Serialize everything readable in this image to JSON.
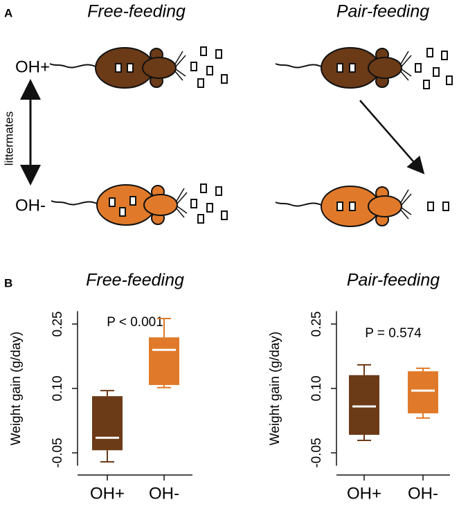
{
  "panel_a": {
    "label": "A",
    "titles": [
      "Free-feeding",
      "Pair-feeding"
    ],
    "row_labels": [
      "OH+",
      "OH-"
    ],
    "arrow_label": "littermates"
  },
  "panel_b": {
    "label": "B"
  },
  "chart_data": [
    {
      "type": "box",
      "title": "Free-feeding",
      "ylabel": "Weight gain (g/day)",
      "annotation": "P < 0.001",
      "categories": [
        "OH+",
        "OH-"
      ],
      "colors": [
        "#6b3a17",
        "#e07a2a"
      ],
      "boxes": [
        {
          "min": -0.071,
          "q1": -0.044,
          "median": -0.015,
          "q3": 0.082,
          "max": 0.095
        },
        {
          "min": 0.102,
          "q1": 0.108,
          "median": 0.19,
          "q3": 0.219,
          "max": 0.263
        }
      ],
      "ylim": [
        -0.08,
        0.28
      ],
      "yticks": [
        -0.05,
        {
          "value": 0.1,
          "label": "0.10"
        },
        0.25
      ]
    },
    {
      "type": "box",
      "title": "Pair-feeding",
      "ylabel": "Weight gain (g/day)",
      "annotation": "P = 0.574",
      "categories": [
        "OH+",
        "OH-"
      ],
      "colors": [
        "#6b3a17",
        "#e07a2a"
      ],
      "boxes": [
        {
          "min": -0.021,
          "q1": -0.008,
          "median": 0.058,
          "q3": 0.131,
          "max": 0.155
        },
        {
          "min": 0.031,
          "q1": 0.042,
          "median": 0.095,
          "q3": 0.14,
          "max": 0.147
        }
      ],
      "ylim": [
        -0.08,
        0.28
      ],
      "yticks": [
        -0.05,
        {
          "value": 0.1,
          "label": "0.10"
        },
        0.25
      ]
    }
  ]
}
